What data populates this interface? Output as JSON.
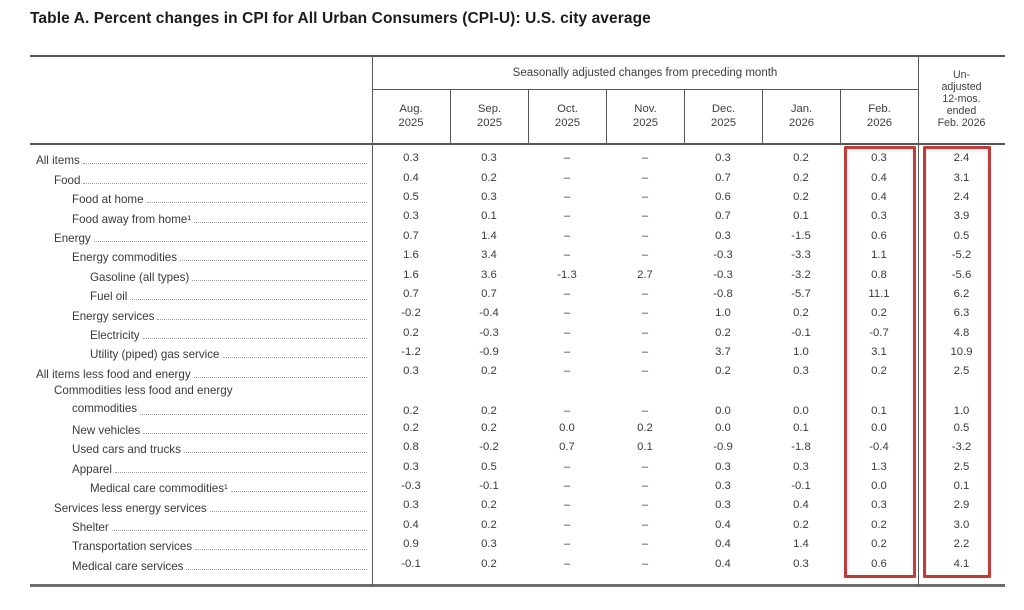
{
  "title": "Table A. Percent changes in CPI for All Urban Consumers (CPI-U): U.S. city average",
  "table": {
    "spanner_label": "Seasonally adjusted changes from preceding month",
    "month_columns": [
      {
        "month": "Aug.",
        "year": "2025"
      },
      {
        "month": "Sep.",
        "year": "2025"
      },
      {
        "month": "Oct.",
        "year": "2025"
      },
      {
        "month": "Nov.",
        "year": "2025"
      },
      {
        "month": "Dec.",
        "year": "2025"
      },
      {
        "month": "Jan.",
        "year": "2026"
      },
      {
        "month": "Feb.",
        "year": "2026"
      }
    ],
    "unadjusted_column_lines": [
      "Un-",
      "adjusted",
      "12-mos.",
      "ended",
      "Feb. 2026"
    ],
    "rows": [
      {
        "label": "All items",
        "indent": 0,
        "values": [
          "0.3",
          "0.3",
          "–",
          "–",
          "0.3",
          "0.2",
          "0.3",
          "2.4"
        ]
      },
      {
        "label": "Food",
        "indent": 1,
        "values": [
          "0.4",
          "0.2",
          "–",
          "–",
          "0.7",
          "0.2",
          "0.4",
          "3.1"
        ]
      },
      {
        "label": "Food at home",
        "indent": 2,
        "values": [
          "0.5",
          "0.3",
          "–",
          "–",
          "0.6",
          "0.2",
          "0.4",
          "2.4"
        ]
      },
      {
        "label": "Food away from home¹",
        "indent": 2,
        "values": [
          "0.3",
          "0.1",
          "–",
          "–",
          "0.7",
          "0.1",
          "0.3",
          "3.9"
        ]
      },
      {
        "label": "Energy",
        "indent": 1,
        "values": [
          "0.7",
          "1.4",
          "–",
          "–",
          "0.3",
          "-1.5",
          "0.6",
          "0.5"
        ]
      },
      {
        "label": "Energy commodities",
        "indent": 2,
        "values": [
          "1.6",
          "3.4",
          "–",
          "–",
          "-0.3",
          "-3.3",
          "1.1",
          "-5.2"
        ]
      },
      {
        "label": "Gasoline (all types)",
        "indent": 3,
        "values": [
          "1.6",
          "3.6",
          "-1.3",
          "2.7",
          "-0.3",
          "-3.2",
          "0.8",
          "-5.6"
        ]
      },
      {
        "label": "Fuel oil",
        "indent": 3,
        "values": [
          "0.7",
          "0.7",
          "–",
          "–",
          "-0.8",
          "-5.7",
          "11.1",
          "6.2"
        ]
      },
      {
        "label": "Energy services",
        "indent": 2,
        "values": [
          "-0.2",
          "-0.4",
          "–",
          "–",
          "1.0",
          "0.2",
          "0.2",
          "6.3"
        ]
      },
      {
        "label": "Electricity",
        "indent": 3,
        "values": [
          "0.2",
          "-0.3",
          "–",
          "–",
          "0.2",
          "-0.1",
          "-0.7",
          "4.8"
        ]
      },
      {
        "label": "Utility (piped) gas service",
        "indent": 3,
        "values": [
          "-1.2",
          "-0.9",
          "–",
          "–",
          "3.7",
          "1.0",
          "3.1",
          "10.9"
        ]
      },
      {
        "label": "All items less food and energy",
        "indent": 0,
        "values": [
          "0.3",
          "0.2",
          "–",
          "–",
          "0.2",
          "0.3",
          "0.2",
          "2.5"
        ]
      },
      {
        "label": "Commodities less food and energy",
        "label_line2": "commodities",
        "indent": 1,
        "values": [
          "0.2",
          "0.2",
          "–",
          "–",
          "0.0",
          "0.0",
          "0.1",
          "1.0"
        ]
      },
      {
        "label": "New vehicles",
        "indent": 2,
        "values": [
          "0.2",
          "0.2",
          "0.0",
          "0.2",
          "0.0",
          "0.1",
          "0.0",
          "0.5"
        ]
      },
      {
        "label": "Used cars and trucks",
        "indent": 2,
        "values": [
          "0.8",
          "-0.2",
          "0.7",
          "0.1",
          "-0.9",
          "-1.8",
          "-0.4",
          "-3.2"
        ]
      },
      {
        "label": "Apparel",
        "indent": 2,
        "values": [
          "0.3",
          "0.5",
          "–",
          "–",
          "0.3",
          "0.3",
          "1.3",
          "2.5"
        ]
      },
      {
        "label": "Medical care commodities¹",
        "indent": 3,
        "values": [
          "-0.3",
          "-0.1",
          "–",
          "–",
          "0.3",
          "-0.1",
          "0.0",
          "0.1"
        ]
      },
      {
        "label": "Services less energy services",
        "indent": 1,
        "values": [
          "0.3",
          "0.2",
          "–",
          "–",
          "0.3",
          "0.4",
          "0.3",
          "2.9"
        ]
      },
      {
        "label": "Shelter",
        "indent": 2,
        "values": [
          "0.4",
          "0.2",
          "–",
          "–",
          "0.4",
          "0.2",
          "0.2",
          "3.0"
        ]
      },
      {
        "label": "Transportation services",
        "indent": 2,
        "values": [
          "0.9",
          "0.3",
          "–",
          "–",
          "0.4",
          "1.4",
          "0.2",
          "2.2"
        ]
      },
      {
        "label": "Medical care services",
        "indent": 2,
        "values": [
          "-0.1",
          "0.2",
          "–",
          "–",
          "0.4",
          "0.3",
          "0.6",
          "4.1"
        ]
      }
    ],
    "highlight": {
      "color": "#bf3c38",
      "highlighted_columns": [
        "Feb. 2026",
        "Unadjusted 12-mos. ended Feb. 2026"
      ]
    }
  }
}
